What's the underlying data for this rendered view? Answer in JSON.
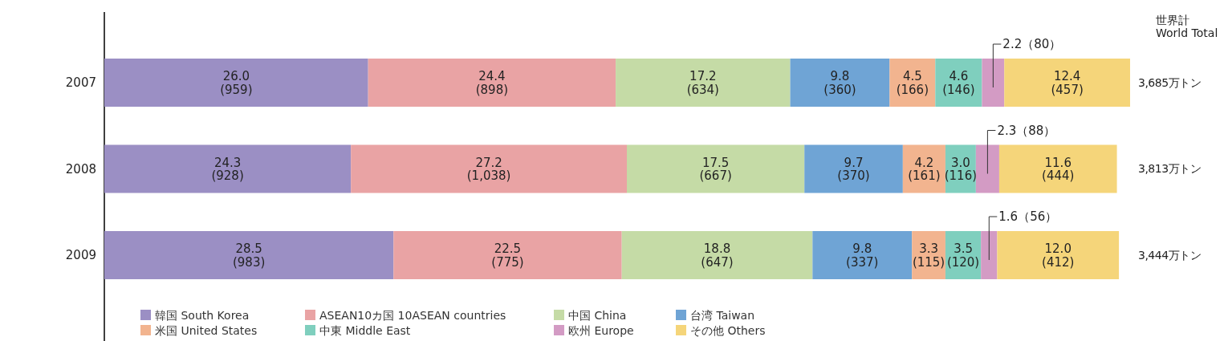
{
  "chart_data": {
    "type": "bar",
    "orientation": "horizontal",
    "stacked": true,
    "categories": [
      "2007",
      "2008",
      "2009"
    ],
    "series": [
      {
        "name": "韓国 South Korea",
        "color": "#9b8fc4",
        "values": [
          26.0,
          24.3,
          28.5
        ],
        "value_labels": [
          "26.0\n(959)",
          "24.3\n(928)",
          "28.5\n(983)"
        ]
      },
      {
        "name": "ASEAN10カ国 10ASEAN countries",
        "color": "#e9a3a4",
        "values": [
          24.4,
          27.2,
          22.5
        ],
        "value_labels": [
          "24.4\n(898)",
          "27.2\n(1,038)",
          "22.5\n(775)"
        ]
      },
      {
        "name": "中国 China",
        "color": "#c5dba6",
        "values": [
          17.2,
          17.5,
          18.8
        ],
        "value_labels": [
          "17.2\n(634)",
          "17.5\n(667)",
          "18.8\n(647)"
        ]
      },
      {
        "name": "台湾 Taiwan",
        "color": "#6fa4d5",
        "values": [
          9.8,
          9.7,
          9.8
        ],
        "value_labels": [
          "9.8\n(360)",
          "9.7\n(370)",
          "9.8\n(337)"
        ]
      },
      {
        "name": "米国 United States",
        "color": "#f2b48f",
        "values": [
          4.5,
          4.2,
          3.3
        ],
        "value_labels": [
          "4.5\n(166)",
          "4.2\n(161)",
          "3.3\n(115)"
        ]
      },
      {
        "name": "中東 Middle East",
        "color": "#7fcfbe",
        "values": [
          4.6,
          3.0,
          3.5
        ],
        "value_labels": [
          "4.6\n(146)",
          "3.0\n(116)",
          "3.5\n(120)"
        ]
      },
      {
        "name": "欧州 Europe",
        "color": "#d39bc4",
        "values": [
          2.2,
          2.3,
          1.6
        ],
        "value_labels": [
          "2.2（80）",
          "2.3（88）",
          "1.6（56）"
        ]
      },
      {
        "name": "その他 Others",
        "color": "#f5d57a",
        "values": [
          12.4,
          11.6,
          12.0
        ],
        "value_labels": [
          "12.4\n(457)",
          "11.6\n(444)",
          "12.0\n(412)"
        ]
      }
    ],
    "annotations": [
      "世界計\nWorld Total",
      "3,685万トン",
      "3,813万トン",
      "3,444万トン"
    ],
    "legend": "bottom left",
    "grid": false
  }
}
